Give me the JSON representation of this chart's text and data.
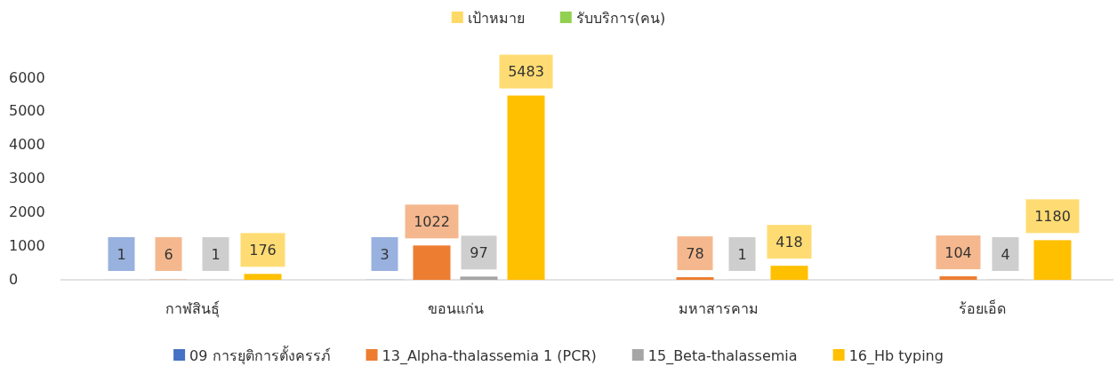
{
  "chart_data": {
    "type": "bar",
    "categories": [
      "กาฬสินธุ์",
      "ขอนแก่น",
      "มหาสารคาม",
      "ร้อยเอ็ด"
    ],
    "series": [
      {
        "name": "09  การยุติการตั้งครรภ์",
        "color": "#4472c4",
        "values": [
          1,
          3,
          null,
          null
        ]
      },
      {
        "name": "13_Alpha-thalassemia 1 (PCR)",
        "color": "#ed7d31",
        "values": [
          6,
          1022,
          78,
          104
        ]
      },
      {
        "name": "15_Beta-thalassemia",
        "color": "#a5a5a5",
        "values": [
          1,
          97,
          1,
          4
        ]
      },
      {
        "name": "16_Hb typing",
        "color": "#ffc000",
        "values": [
          176,
          5483,
          418,
          1180
        ]
      },
      {
        "name": "เป้าหมาย",
        "color": "#ffd966",
        "values": [
          null,
          null,
          null,
          null
        ]
      },
      {
        "name": "รับบริการ(คน)",
        "color": "#92d050",
        "values": [
          null,
          null,
          null,
          null
        ]
      }
    ],
    "ylim": [
      0,
      6000
    ],
    "yticks": [
      0,
      1000,
      2000,
      3000,
      4000,
      5000,
      6000
    ],
    "data_labels": true,
    "grid": false,
    "legend": "bottom"
  }
}
